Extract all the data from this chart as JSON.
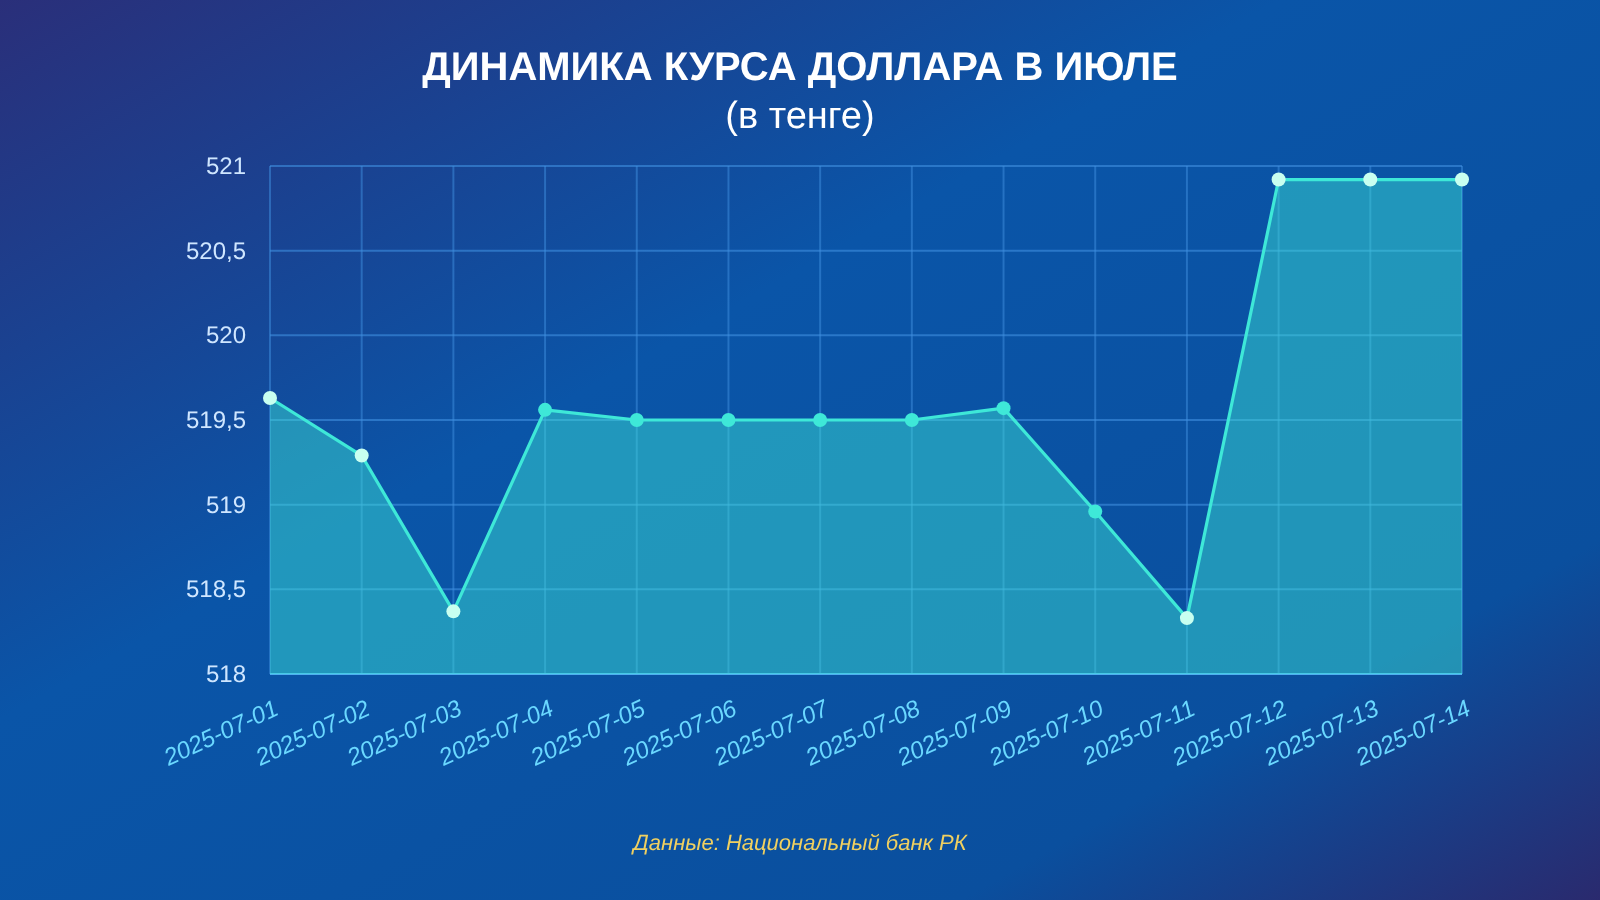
{
  "chart_data": {
    "type": "area",
    "title": "ДИНАМИКА КУРСА ДОЛЛАРА В ИЮЛЕ",
    "subtitle": "(в тенге)",
    "categories": [
      "2025-07-01",
      "2025-07-02",
      "2025-07-03",
      "2025-07-04",
      "2025-07-05",
      "2025-07-06",
      "2025-07-07",
      "2025-07-08",
      "2025-07-09",
      "2025-07-10",
      "2025-07-11",
      "2025-07-12",
      "2025-07-13",
      "2025-07-14"
    ],
    "series": [
      {
        "color": "#3ee8d8",
        "values": [
          519.63,
          519.29,
          518.37,
          519.56,
          519.5,
          519.5,
          519.5,
          519.5,
          519.57,
          518.96,
          518.33,
          520.92,
          520.92,
          520.92
        ]
      }
    ],
    "ylim": [
      518,
      521
    ],
    "yticks": [
      518,
      {
        "value": 518.5,
        "label": "518,5"
      },
      519,
      {
        "value": 519.5,
        "label": "519,5"
      },
      520,
      {
        "value": 520.5,
        "label": "520,5"
      },
      521
    ],
    "grid": true,
    "marker": "circle",
    "line_style": "solid",
    "annotations": [
      "Данные: Национальный банк РК"
    ]
  }
}
